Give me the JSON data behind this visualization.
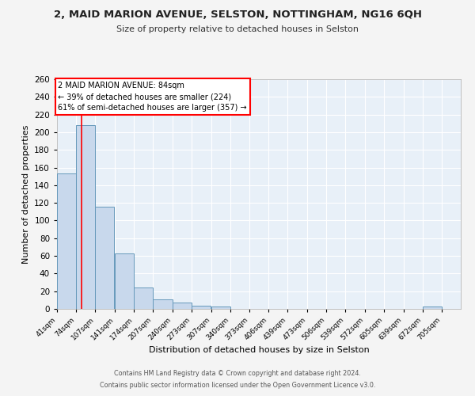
{
  "title_line1": "2, MAID MARION AVENUE, SELSTON, NOTTINGHAM, NG16 6QH",
  "title_line2": "Size of property relative to detached houses in Selston",
  "xlabel": "Distribution of detached houses by size in Selston",
  "ylabel": "Number of detached properties",
  "bar_color": "#c8d8ec",
  "bar_edge_color": "#6699bb",
  "bg_color": "#e8f0f8",
  "fig_bg_color": "#f4f4f4",
  "grid_color": "#ffffff",
  "red_line_x": 84,
  "annotation_title": "2 MAID MARION AVENUE: 84sqm",
  "annotation_line1": "← 39% of detached houses are smaller (224)",
  "annotation_line2": "61% of semi-detached houses are larger (357) →",
  "bin_edges": [
    41,
    74,
    107,
    141,
    174,
    207,
    240,
    273,
    307,
    340,
    373,
    406,
    439,
    473,
    506,
    539,
    572,
    605,
    639,
    672,
    705
  ],
  "bar_heights": [
    153,
    208,
    116,
    63,
    24,
    11,
    7,
    4,
    3,
    0,
    0,
    0,
    0,
    0,
    0,
    0,
    0,
    0,
    0,
    3,
    0
  ],
  "ylim": [
    0,
    260
  ],
  "yticks": [
    0,
    20,
    40,
    60,
    80,
    100,
    120,
    140,
    160,
    180,
    200,
    220,
    240,
    260
  ],
  "footer_line1": "Contains HM Land Registry data © Crown copyright and database right 2024.",
  "footer_line2": "Contains public sector information licensed under the Open Government Licence v3.0."
}
